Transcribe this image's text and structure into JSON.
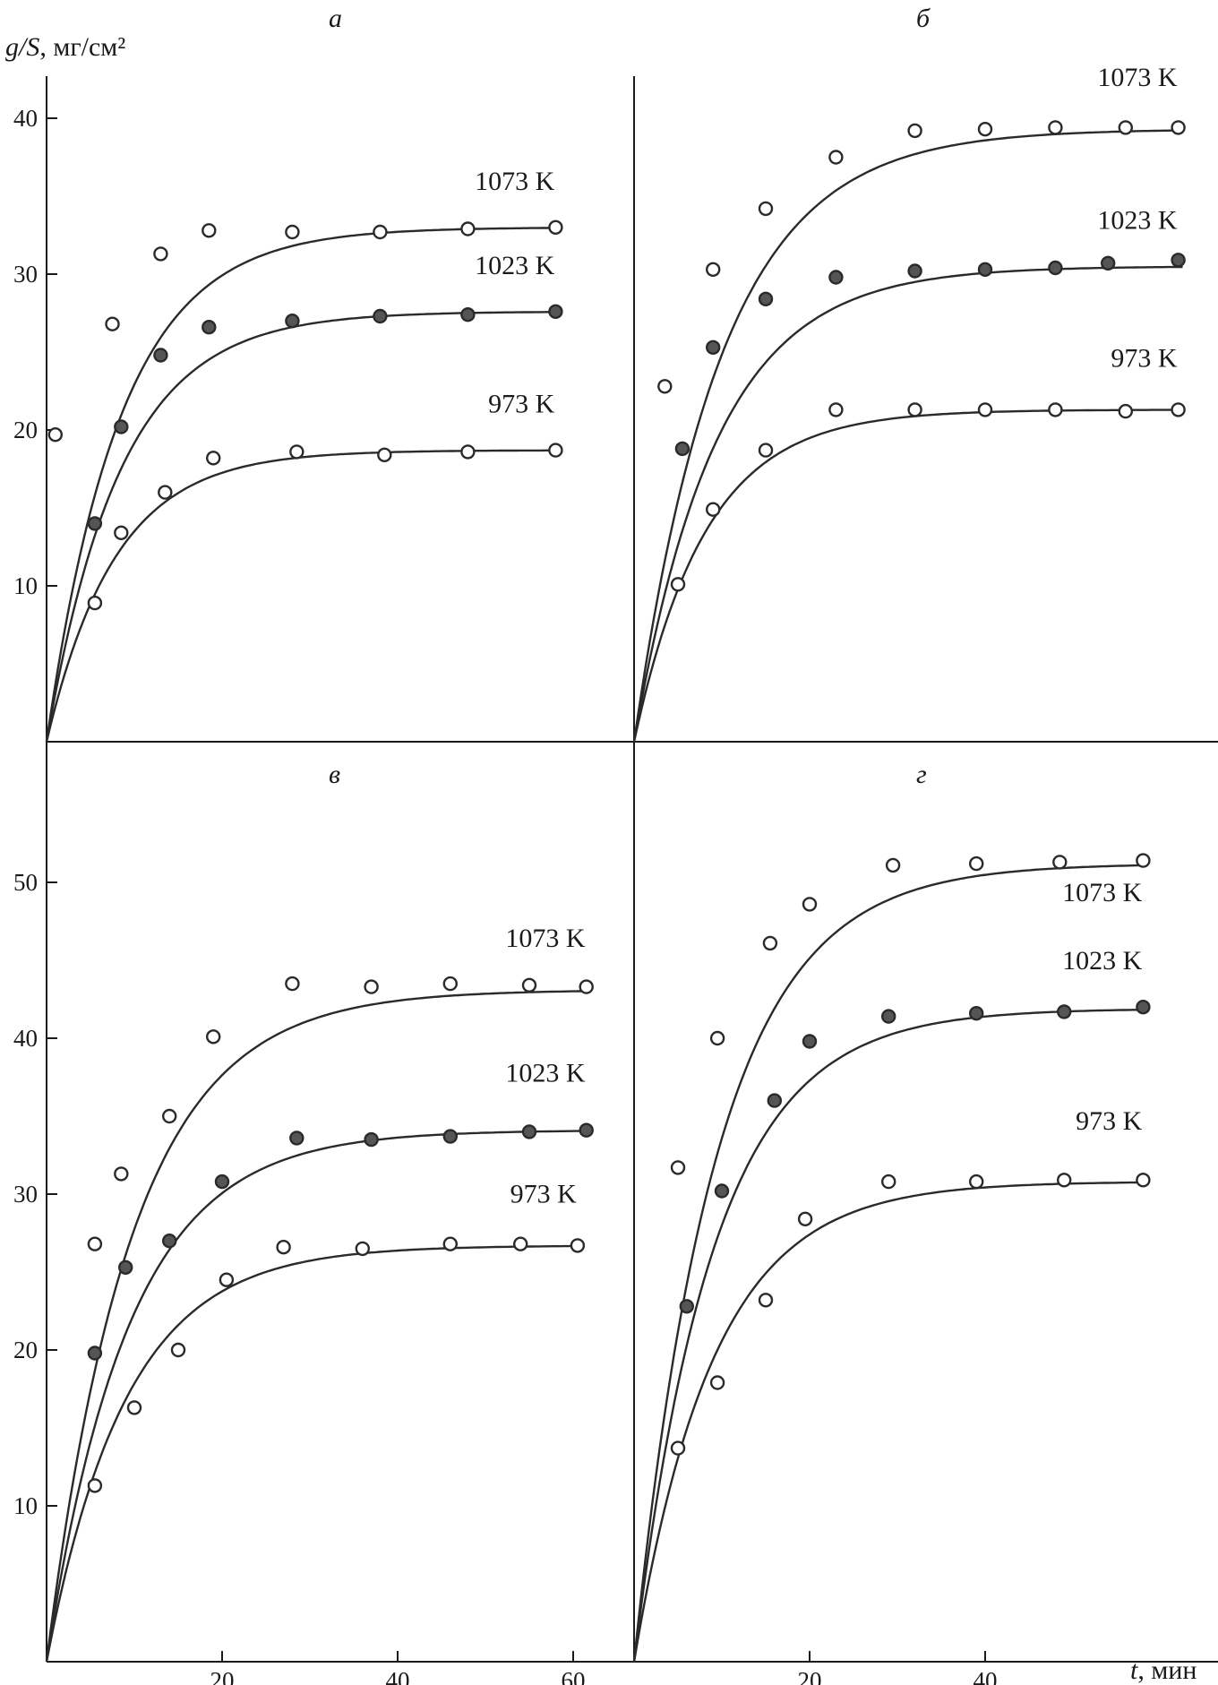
{
  "colors": {
    "ink": "#1a1a1a",
    "curve": "#2a2a2a",
    "filled_marker": "#555555",
    "background": "#ffffff"
  },
  "y_axis_title": {
    "var": "g/S",
    "unit": ", мг/см²"
  },
  "x_axis_title": {
    "var": "t",
    "unit": ", мин"
  },
  "chart_data": [
    {
      "type": "scatter",
      "panel": "а",
      "xlim": [
        0,
        63
      ],
      "ylim": [
        0,
        43
      ],
      "yticks": [
        10,
        20,
        30,
        40
      ],
      "xticks": [],
      "series": [
        {
          "name": "1073 K",
          "marker": "open",
          "curve_plateau_x": 27,
          "curve_end": 33.0,
          "x": [
            1,
            7.5,
            13,
            18.5,
            28,
            38,
            48,
            58
          ],
          "y": [
            19.7,
            26.8,
            31.3,
            32.8,
            32.7,
            32.7,
            32.9,
            33.0
          ]
        },
        {
          "name": "1023 K",
          "marker": "filled",
          "curve_plateau_x": 27,
          "curve_end": 27.6,
          "x": [
            5.5,
            8.5,
            13,
            18.5,
            28,
            38,
            48,
            58
          ],
          "y": [
            14.0,
            20.2,
            24.8,
            26.6,
            27.0,
            27.3,
            27.4,
            27.6
          ]
        },
        {
          "name": "973 K",
          "marker": "open",
          "curve_plateau_x": 25,
          "curve_end": 18.7,
          "x": [
            5.5,
            8.5,
            13.5,
            19,
            28.5,
            38.5,
            48,
            58
          ],
          "y": [
            8.9,
            13.4,
            16.0,
            18.2,
            18.6,
            18.4,
            18.6,
            18.7
          ]
        }
      ]
    },
    {
      "type": "scatter",
      "panel": "б",
      "xlim": [
        0,
        63
      ],
      "ylim": [
        0,
        43
      ],
      "yticks": [],
      "xticks": [],
      "series": [
        {
          "name": "1073 K",
          "marker": "open",
          "curve_plateau_x": 32,
          "curve_end": 39.3,
          "x": [
            3.5,
            9,
            15,
            23,
            32,
            40,
            48,
            56,
            62
          ],
          "y": [
            22.8,
            30.3,
            34.2,
            37.5,
            39.2,
            39.3,
            39.4,
            39.4,
            39.4
          ]
        },
        {
          "name": "1023 K",
          "marker": "filled",
          "curve_plateau_x": 30,
          "curve_end": 30.5,
          "x": [
            5.5,
            9,
            15,
            23,
            32,
            40,
            48,
            54,
            62
          ],
          "y": [
            18.8,
            25.3,
            28.4,
            29.8,
            30.2,
            30.3,
            30.4,
            30.7,
            30.9
          ]
        },
        {
          "name": "973 K",
          "marker": "open",
          "curve_plateau_x": 26,
          "curve_end": 21.3,
          "x": [
            5,
            9,
            15,
            23,
            32,
            40,
            48,
            56,
            62
          ],
          "y": [
            10.1,
            14.9,
            18.7,
            21.3,
            21.3,
            21.3,
            21.3,
            21.2,
            21.3
          ]
        }
      ]
    },
    {
      "type": "scatter",
      "panel": "в",
      "xlim": [
        0,
        63
      ],
      "ylim": [
        0,
        55.5
      ],
      "yticks": [
        10,
        20,
        30,
        40,
        50
      ],
      "xticks": [
        20,
        40,
        60
      ],
      "series": [
        {
          "name": "1073 K",
          "marker": "open",
          "curve_plateau_x": 31,
          "curve_end": 43.1,
          "x": [
            5.5,
            8.5,
            14,
            19,
            28,
            37,
            46,
            55,
            61.5
          ],
          "y": [
            26.8,
            31.3,
            35.0,
            40.1,
            43.5,
            43.3,
            43.5,
            43.4,
            43.3
          ]
        },
        {
          "name": "1023 K",
          "marker": "filled",
          "curve_plateau_x": 30,
          "curve_end": 34.1,
          "x": [
            5.5,
            9,
            14,
            20,
            28.5,
            37,
            46,
            55,
            61.5
          ],
          "y": [
            19.8,
            25.3,
            27.0,
            30.8,
            33.6,
            33.5,
            33.7,
            34.0,
            34.1
          ]
        },
        {
          "name": "973 K",
          "marker": "open",
          "curve_plateau_x": 29,
          "curve_end": 26.7,
          "x": [
            5.5,
            10,
            15,
            20.5,
            27,
            36,
            46,
            54,
            60.5
          ],
          "y": [
            11.3,
            16.3,
            20.0,
            24.5,
            26.6,
            26.5,
            26.8,
            26.8,
            26.7
          ]
        }
      ]
    },
    {
      "type": "scatter",
      "panel": "г",
      "xlim": [
        0,
        63
      ],
      "ylim": [
        0,
        55.5
      ],
      "yticks": [],
      "xticks": [
        20,
        40
      ],
      "series": [
        {
          "name": "1073 K",
          "marker": "open",
          "curve_plateau_x": 30,
          "curve_end": 51.2,
          "x": [
            5,
            9.5,
            15.5,
            20,
            29.5,
            39,
            48.5,
            58
          ],
          "y": [
            31.7,
            40.0,
            46.1,
            48.6,
            51.1,
            51.2,
            51.3,
            51.4
          ]
        },
        {
          "name": "1023 K",
          "marker": "filled",
          "curve_plateau_x": 29,
          "curve_end": 41.9,
          "x": [
            6,
            10,
            16,
            20,
            29,
            39,
            49,
            58
          ],
          "y": [
            22.8,
            30.2,
            36.0,
            39.8,
            41.4,
            41.6,
            41.7,
            42.0
          ]
        },
        {
          "name": "973 K",
          "marker": "open",
          "curve_plateau_x": 29,
          "curve_end": 30.8,
          "x": [
            5,
            9.5,
            15,
            19.5,
            29,
            39,
            49,
            58
          ],
          "y": [
            13.7,
            17.9,
            23.2,
            28.4,
            30.8,
            30.8,
            30.9,
            30.9
          ]
        }
      ]
    }
  ]
}
